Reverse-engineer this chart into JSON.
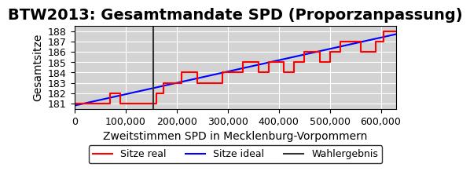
{
  "title": "BTW2013: Gesamtmandate SPD (Proporzanpassung)",
  "xlabel": "Zweitstimmen SPD in Mecklenburg-Vorpommern",
  "ylabel": "Gesamtsitze",
  "bg_color": "#d3d3d3",
  "grid_color": "white",
  "xlim": [
    0,
    630000
  ],
  "ylim": [
    180.5,
    188.5
  ],
  "xticks": [
    0,
    100000,
    200000,
    300000,
    400000,
    500000,
    600000
  ],
  "yticks": [
    181,
    182,
    183,
    184,
    185,
    186,
    187,
    188
  ],
  "ideal_line": {
    "x": [
      0,
      630000
    ],
    "y": [
      180.8,
      187.7
    ],
    "color": "blue",
    "lw": 1.5,
    "label": "Sitze ideal"
  },
  "real_steps": {
    "x": [
      0,
      70000,
      70000,
      90000,
      90000,
      160000,
      160000,
      175000,
      175000,
      210000,
      210000,
      240000,
      240000,
      290000,
      290000,
      330000,
      330000,
      360000,
      360000,
      380000,
      380000,
      410000,
      410000,
      430000,
      430000,
      450000,
      450000,
      480000,
      480000,
      500000,
      500000,
      520000,
      520000,
      560000,
      560000,
      590000,
      590000,
      605000,
      605000,
      630000
    ],
    "y": [
      181,
      181,
      182,
      182,
      181,
      181,
      182,
      182,
      183,
      183,
      184,
      184,
      183,
      183,
      184,
      184,
      185,
      185,
      184,
      184,
      185,
      185,
      184,
      184,
      185,
      185,
      186,
      186,
      185,
      185,
      186,
      186,
      187,
      187,
      186,
      186,
      187,
      187,
      188,
      188
    ],
    "color": "red",
    "lw": 1.5,
    "label": "Sitze real"
  },
  "wahlergebnis_x": 155000,
  "wahlergebnis_color": "#333333",
  "wahlergebnis_lw": 1.5,
  "wahlergebnis_label": "Wahlergebnis",
  "title_fontsize": 14,
  "axis_label_fontsize": 10,
  "tick_fontsize": 9,
  "legend_fontsize": 9
}
